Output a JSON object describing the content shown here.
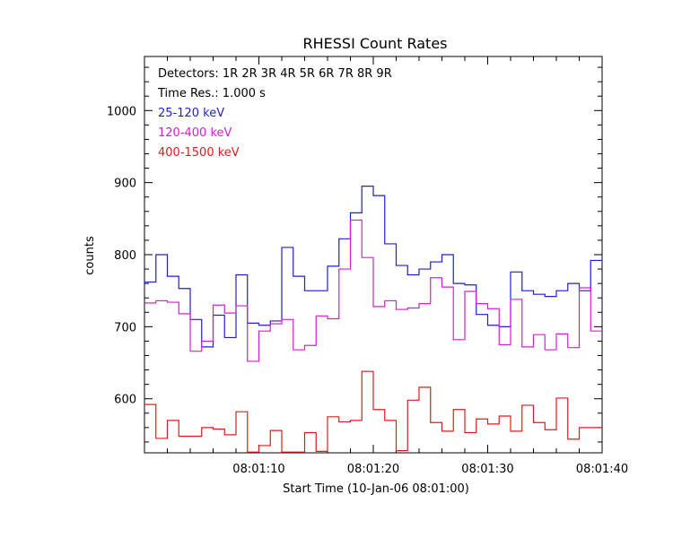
{
  "chart_data": {
    "type": "line",
    "title": "RHESSI Count Rates",
    "xlabel": "Start Time (10-Jan-06 08:01:00)",
    "ylabel": "counts",
    "x_start_seconds": 0,
    "step_seconds": 1,
    "xlim_seconds": [
      0,
      40
    ],
    "ylim": [
      525,
      1075
    ],
    "x_ticks": [
      {
        "seconds": 10,
        "label": "08:01:10"
      },
      {
        "seconds": 20,
        "label": "08:01:20"
      },
      {
        "seconds": 30,
        "label": "08:01:30"
      },
      {
        "seconds": 40,
        "label": "08:01:40"
      }
    ],
    "y_ticks": [
      {
        "value": 600,
        "label": "600"
      },
      {
        "value": 700,
        "label": "700"
      },
      {
        "value": 800,
        "label": "800"
      },
      {
        "value": 900,
        "label": "900"
      },
      {
        "value": 1000,
        "label": "1000"
      }
    ],
    "info_lines": [
      "Detectors:  1R 2R 3R 4R 5R 6R 7R 8R 9R",
      "Time Res.: 1.000 s"
    ],
    "series": [
      {
        "name": "25-120 keV",
        "color": "#1f1fd0",
        "values": [
          762,
          800,
          770,
          753,
          710,
          672,
          716,
          685,
          772,
          705,
          702,
          708,
          810,
          770,
          750,
          750,
          784,
          822,
          858,
          895,
          882,
          815,
          785,
          772,
          780,
          790,
          800,
          760,
          758,
          717,
          702,
          700,
          776,
          750,
          745,
          742,
          750,
          760,
          750,
          792,
          788
        ]
      },
      {
        "name": "120-400 keV",
        "color": "#d020d0",
        "values": [
          733,
          736,
          734,
          718,
          666,
          680,
          730,
          719,
          729,
          652,
          694,
          704,
          710,
          668,
          674,
          715,
          711,
          780,
          848,
          796,
          728,
          736,
          724,
          726,
          732,
          768,
          755,
          682,
          749,
          732,
          725,
          675,
          738,
          672,
          689,
          668,
          690,
          671,
          754,
          694,
          676
        ]
      },
      {
        "name": "400-1500 keV",
        "color": "#e01a1a",
        "values": [
          592,
          545,
          570,
          548,
          548,
          560,
          558,
          550,
          582,
          526,
          535,
          556,
          526,
          526,
          553,
          527,
          575,
          568,
          570,
          638,
          585,
          570,
          528,
          598,
          616,
          567,
          555,
          585,
          553,
          572,
          565,
          576,
          555,
          591,
          567,
          557,
          601,
          544,
          560,
          560,
          571
        ]
      }
    ]
  }
}
